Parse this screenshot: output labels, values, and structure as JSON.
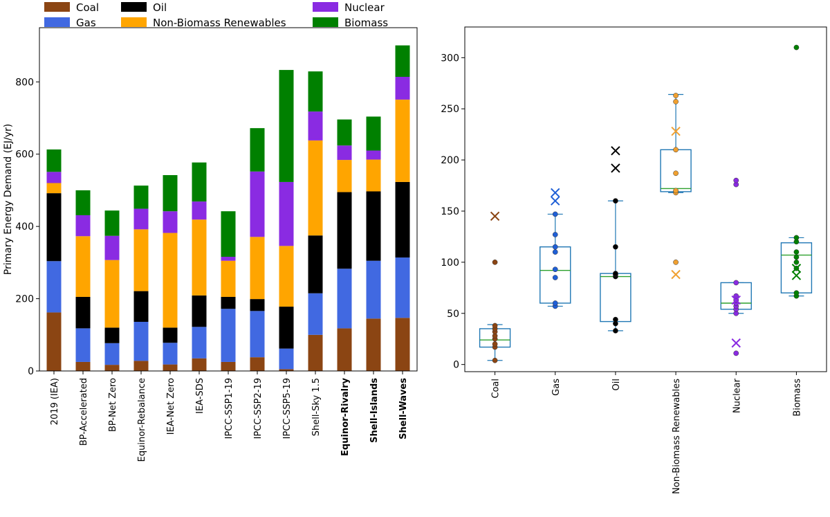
{
  "chart_data": [
    {
      "type": "bar",
      "stacked": true,
      "ylabel": "Primary Energy Demand (EJ/yr)",
      "ylim": [
        0,
        950
      ],
      "yticks": [
        0,
        200,
        400,
        600,
        800
      ],
      "categories": [
        "2019 (IEA)",
        "BP-Accelerated",
        "BP-Net Zero",
        "Equinor-Rebalance",
        "IEA-Net Zero",
        "IEA-SDS",
        "IPCC-SSP1-19",
        "IPCC-SSP2-19",
        "IPCC-SSP5-19",
        "Shell-Sky 1.5",
        "Equinor-Rivalry",
        "Shell-Islands",
        "Shell-Waves"
      ],
      "bold_categories": [
        "Equinor-Rivalry",
        "Shell-Islands",
        "Shell-Waves"
      ],
      "series": [
        {
          "name": "Coal",
          "color": "#8b4513",
          "values": [
            162,
            25,
            17,
            28,
            18,
            35,
            25,
            38,
            5,
            100,
            118,
            145,
            147
          ]
        },
        {
          "name": "Gas",
          "color": "#4169e1",
          "values": [
            142,
            93,
            60,
            108,
            60,
            87,
            147,
            128,
            57,
            115,
            165,
            160,
            167
          ]
        },
        {
          "name": "Oil",
          "color": "#000000",
          "values": [
            188,
            87,
            43,
            85,
            42,
            87,
            33,
            33,
            116,
            160,
            212,
            192,
            209
          ]
        },
        {
          "name": "Non-Biomass Renewables",
          "color": "#ffa500",
          "values": [
            28,
            168,
            187,
            171,
            262,
            210,
            100,
            172,
            168,
            263,
            89,
            88,
            228
          ]
        },
        {
          "name": "Nuclear",
          "color": "#8a2be2",
          "values": [
            31,
            58,
            67,
            57,
            60,
            50,
            11,
            181,
            177,
            80,
            40,
            25,
            63
          ]
        },
        {
          "name": "Biomass",
          "color": "#008000",
          "values": [
            62,
            69,
            70,
            64,
            100,
            108,
            126,
            120,
            310,
            111,
            72,
            94,
            87
          ]
        }
      ],
      "legend": [
        "Coal",
        "Gas",
        "Oil",
        "Non-Biomass Renewables",
        "Nuclear",
        "Biomass"
      ]
    },
    {
      "type": "box",
      "ylim": [
        -7,
        330
      ],
      "yticks": [
        0,
        50,
        100,
        150,
        200,
        250,
        300
      ],
      "categories": [
        "Coal",
        "Gas",
        "Oil",
        "Non-Biomass Renewables",
        "Nuclear",
        "Biomass"
      ],
      "colors": [
        "#8b4513",
        "#1f5fd6",
        "#000000",
        "#f0a030",
        "#8a2be2",
        "#008000"
      ],
      "boxes": [
        {
          "q1": 17,
          "median": 24,
          "q3": 35,
          "whisker_low": 4,
          "whisker_high": 39
        },
        {
          "q1": 60,
          "median": 92,
          "q3": 115,
          "whisker_low": 57,
          "whisker_high": 147
        },
        {
          "q1": 42,
          "median": 86,
          "q3": 89,
          "whisker_low": 33,
          "whisker_high": 160
        },
        {
          "q1": 169,
          "median": 172,
          "q3": 210,
          "whisker_low": 168,
          "whisker_high": 264
        },
        {
          "q1": 54,
          "median": 60,
          "q3": 80,
          "whisker_low": 50,
          "whisker_high": 80
        },
        {
          "q1": 70,
          "median": 107,
          "q3": 119,
          "whisker_low": 67,
          "whisker_high": 124
        }
      ],
      "points": [
        [
          4,
          17,
          20,
          25,
          28,
          32,
          35,
          38,
          100
        ],
        [
          57,
          60,
          85,
          93,
          110,
          115,
          127,
          147
        ],
        [
          33,
          40,
          44,
          86,
          88,
          89,
          115,
          160
        ],
        [
          100,
          168,
          170,
          187,
          210,
          257,
          263
        ],
        [
          11,
          50,
          54,
          57,
          60,
          63,
          67,
          80,
          176,
          180
        ],
        [
          67,
          70,
          94,
          100,
          105,
          110,
          120,
          124,
          310
        ]
      ],
      "crosses": [
        [
          145
        ],
        [
          160,
          168
        ],
        [
          192,
          209
        ],
        [
          88,
          228
        ],
        [
          21,
          63
        ],
        [
          87,
          94
        ]
      ]
    }
  ]
}
